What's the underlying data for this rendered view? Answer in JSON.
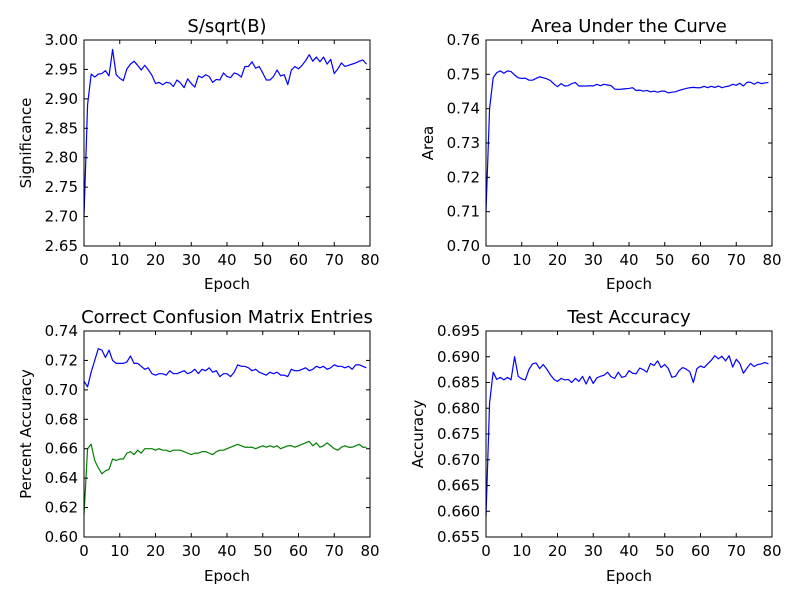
{
  "chart_data": [
    {
      "type": "line",
      "title": "S/sqrt(B)",
      "xlabel": "Epoch",
      "ylabel": "Significance",
      "xlim": [
        0,
        80
      ],
      "ylim": [
        2.65,
        3.0
      ],
      "xticks": [
        "0",
        "10",
        "20",
        "30",
        "40",
        "50",
        "60",
        "70",
        "80"
      ],
      "yticks": [
        "2.65",
        "2.70",
        "2.75",
        "2.80",
        "2.85",
        "2.90",
        "2.95",
        "3.00"
      ],
      "grid": false,
      "x": [
        0,
        1,
        2,
        3,
        4,
        5,
        6,
        7,
        8,
        9,
        10,
        11,
        12,
        13,
        14,
        15,
        16,
        17,
        18,
        19,
        20,
        21,
        22,
        23,
        24,
        25,
        26,
        27,
        28,
        29,
        30,
        31,
        32,
        33,
        34,
        35,
        36,
        37,
        38,
        39,
        40,
        41,
        42,
        43,
        44,
        45,
        46,
        47,
        48,
        49,
        50,
        51,
        52,
        53,
        54,
        55,
        56,
        57,
        58,
        59,
        60,
        61,
        62,
        63,
        64,
        65,
        66,
        67,
        68,
        69,
        70,
        71,
        72,
        73,
        74,
        75,
        76,
        77,
        78,
        79
      ],
      "series": [
        {
          "color": "#0000ff",
          "values": [
            2.7,
            2.89,
            2.942,
            2.937,
            2.942,
            2.943,
            2.948,
            2.939,
            2.984,
            2.941,
            2.935,
            2.931,
            2.951,
            2.959,
            2.964,
            2.957,
            2.949,
            2.957,
            2.949,
            2.94,
            2.926,
            2.928,
            2.924,
            2.928,
            2.927,
            2.921,
            2.932,
            2.927,
            2.919,
            2.934,
            2.926,
            2.92,
            2.939,
            2.936,
            2.941,
            2.938,
            2.928,
            2.933,
            2.932,
            2.944,
            2.938,
            2.936,
            2.944,
            2.942,
            2.937,
            2.955,
            2.955,
            2.963,
            2.952,
            2.955,
            2.944,
            2.932,
            2.932,
            2.938,
            2.949,
            2.939,
            2.941,
            2.924,
            2.949,
            2.955,
            2.951,
            2.957,
            2.965,
            2.975,
            2.964,
            2.971,
            2.963,
            2.971,
            2.959,
            2.967,
            2.943,
            2.951,
            2.961,
            2.955,
            2.957,
            2.959,
            2.961,
            2.964,
            2.966,
            2.959
          ]
        }
      ]
    },
    {
      "type": "line",
      "title": "Area Under the Curve",
      "xlabel": "Epoch",
      "ylabel": "Area",
      "xlim": [
        0,
        80
      ],
      "ylim": [
        0.7,
        0.76
      ],
      "xticks": [
        "0",
        "10",
        "20",
        "30",
        "40",
        "50",
        "60",
        "70",
        "80"
      ],
      "yticks": [
        "0.70",
        "0.71",
        "0.72",
        "0.73",
        "0.74",
        "0.75",
        "0.76"
      ],
      "grid": false,
      "x": [
        0,
        1,
        2,
        3,
        4,
        5,
        6,
        7,
        8,
        9,
        10,
        11,
        12,
        13,
        14,
        15,
        16,
        17,
        18,
        19,
        20,
        21,
        22,
        23,
        24,
        25,
        26,
        27,
        28,
        29,
        30,
        31,
        32,
        33,
        34,
        35,
        36,
        37,
        38,
        39,
        40,
        41,
        42,
        43,
        44,
        45,
        46,
        47,
        48,
        49,
        50,
        51,
        52,
        53,
        54,
        55,
        56,
        57,
        58,
        59,
        60,
        61,
        62,
        63,
        64,
        65,
        66,
        67,
        68,
        69,
        70,
        71,
        72,
        73,
        74,
        75,
        76,
        77,
        78,
        79
      ],
      "series": [
        {
          "color": "#0000ff",
          "values": [
            0.71,
            0.74,
            0.749,
            0.7505,
            0.751,
            0.7503,
            0.751,
            0.7508,
            0.7498,
            0.749,
            0.7488,
            0.7489,
            0.7483,
            0.7483,
            0.7488,
            0.7493,
            0.749,
            0.7487,
            0.7482,
            0.7472,
            0.7464,
            0.7473,
            0.7466,
            0.7467,
            0.7473,
            0.7476,
            0.7466,
            0.7466,
            0.7466,
            0.7467,
            0.7466,
            0.7471,
            0.7467,
            0.7471,
            0.7469,
            0.7467,
            0.7457,
            0.7456,
            0.7457,
            0.7458,
            0.7459,
            0.7461,
            0.7453,
            0.7454,
            0.7451,
            0.7453,
            0.7449,
            0.7451,
            0.7448,
            0.7451,
            0.7451,
            0.7446,
            0.7448,
            0.7449,
            0.7453,
            0.7456,
            0.7459,
            0.7461,
            0.7462,
            0.7461,
            0.7461,
            0.7465,
            0.7461,
            0.7465,
            0.7462,
            0.7466,
            0.7461,
            0.7464,
            0.7466,
            0.7471,
            0.7468,
            0.7474,
            0.7466,
            0.7477,
            0.7477,
            0.7471,
            0.7477,
            0.7473,
            0.7475,
            0.7476
          ]
        }
      ]
    },
    {
      "type": "line",
      "title": "Correct Confusion Matrix Entries",
      "xlabel": "Epoch",
      "ylabel": "Percent Accuracy",
      "xlim": [
        0,
        80
      ],
      "ylim": [
        0.6,
        0.74
      ],
      "xticks": [
        "0",
        "10",
        "20",
        "30",
        "40",
        "50",
        "60",
        "70",
        "80"
      ],
      "yticks": [
        "0.60",
        "0.62",
        "0.64",
        "0.66",
        "0.68",
        "0.70",
        "0.72",
        "0.74"
      ],
      "grid": false,
      "x": [
        0,
        1,
        2,
        3,
        4,
        5,
        6,
        7,
        8,
        9,
        10,
        11,
        12,
        13,
        14,
        15,
        16,
        17,
        18,
        19,
        20,
        21,
        22,
        23,
        24,
        25,
        26,
        27,
        28,
        29,
        30,
        31,
        32,
        33,
        34,
        35,
        36,
        37,
        38,
        39,
        40,
        41,
        42,
        43,
        44,
        45,
        46,
        47,
        48,
        49,
        50,
        51,
        52,
        53,
        54,
        55,
        56,
        57,
        58,
        59,
        60,
        61,
        62,
        63,
        64,
        65,
        66,
        67,
        68,
        69,
        70,
        71,
        72,
        73,
        74,
        75,
        76,
        77,
        78,
        79
      ],
      "series": [
        {
          "color": "#0000ff",
          "values": [
            0.706,
            0.702,
            0.712,
            0.72,
            0.728,
            0.727,
            0.722,
            0.727,
            0.72,
            0.718,
            0.718,
            0.718,
            0.719,
            0.723,
            0.718,
            0.718,
            0.716,
            0.714,
            0.715,
            0.711,
            0.71,
            0.711,
            0.711,
            0.71,
            0.713,
            0.711,
            0.711,
            0.712,
            0.713,
            0.711,
            0.712,
            0.714,
            0.711,
            0.714,
            0.713,
            0.715,
            0.712,
            0.713,
            0.709,
            0.711,
            0.711,
            0.709,
            0.712,
            0.717,
            0.716,
            0.716,
            0.715,
            0.713,
            0.714,
            0.712,
            0.711,
            0.71,
            0.712,
            0.711,
            0.712,
            0.71,
            0.71,
            0.709,
            0.714,
            0.713,
            0.713,
            0.714,
            0.715,
            0.713,
            0.714,
            0.716,
            0.715,
            0.716,
            0.714,
            0.715,
            0.717,
            0.716,
            0.716,
            0.715,
            0.716,
            0.714,
            0.717,
            0.717,
            0.716,
            0.715
          ]
        },
        {
          "color": "#008000",
          "values": [
            0.615,
            0.66,
            0.663,
            0.652,
            0.647,
            0.643,
            0.645,
            0.646,
            0.653,
            0.652,
            0.653,
            0.653,
            0.657,
            0.658,
            0.656,
            0.659,
            0.657,
            0.66,
            0.66,
            0.66,
            0.659,
            0.66,
            0.659,
            0.659,
            0.658,
            0.659,
            0.659,
            0.659,
            0.658,
            0.657,
            0.656,
            0.657,
            0.657,
            0.658,
            0.658,
            0.657,
            0.656,
            0.658,
            0.659,
            0.659,
            0.66,
            0.661,
            0.662,
            0.663,
            0.662,
            0.661,
            0.661,
            0.661,
            0.66,
            0.661,
            0.662,
            0.661,
            0.662,
            0.661,
            0.662,
            0.66,
            0.661,
            0.662,
            0.662,
            0.661,
            0.662,
            0.663,
            0.664,
            0.665,
            0.662,
            0.664,
            0.661,
            0.662,
            0.664,
            0.662,
            0.66,
            0.659,
            0.661,
            0.662,
            0.661,
            0.661,
            0.662,
            0.663,
            0.661,
            0.661
          ]
        }
      ]
    },
    {
      "type": "line",
      "title": "Test Accuracy",
      "xlabel": "Epoch",
      "ylabel": "Accuracy",
      "xlim": [
        0,
        80
      ],
      "ylim": [
        0.655,
        0.695
      ],
      "xticks": [
        "0",
        "10",
        "20",
        "30",
        "40",
        "50",
        "60",
        "70",
        "80"
      ],
      "yticks": [
        "0.655",
        "0.660",
        "0.665",
        "0.670",
        "0.675",
        "0.680",
        "0.685",
        "0.690",
        "0.695"
      ],
      "grid": false,
      "x": [
        0,
        1,
        2,
        3,
        4,
        5,
        6,
        7,
        8,
        9,
        10,
        11,
        12,
        13,
        14,
        15,
        16,
        17,
        18,
        19,
        20,
        21,
        22,
        23,
        24,
        25,
        26,
        27,
        28,
        29,
        30,
        31,
        32,
        33,
        34,
        35,
        36,
        37,
        38,
        39,
        40,
        41,
        42,
        43,
        44,
        45,
        46,
        47,
        48,
        49,
        50,
        51,
        52,
        53,
        54,
        55,
        56,
        57,
        58,
        59,
        60,
        61,
        62,
        63,
        64,
        65,
        66,
        67,
        68,
        69,
        70,
        71,
        72,
        73,
        74,
        75,
        76,
        77,
        78,
        79
      ],
      "series": [
        {
          "color": "#0000ff",
          "values": [
            0.659,
            0.681,
            0.687,
            0.6856,
            0.686,
            0.6855,
            0.686,
            0.6855,
            0.69,
            0.6862,
            0.6857,
            0.6855,
            0.6875,
            0.6886,
            0.6888,
            0.6877,
            0.6885,
            0.6876,
            0.6865,
            0.6856,
            0.6852,
            0.6858,
            0.6855,
            0.6856,
            0.685,
            0.6858,
            0.6852,
            0.6862,
            0.6847,
            0.6862,
            0.6848,
            0.6859,
            0.6862,
            0.6864,
            0.687,
            0.6861,
            0.6858,
            0.687,
            0.686,
            0.6862,
            0.6873,
            0.6868,
            0.6867,
            0.6878,
            0.6875,
            0.687,
            0.6887,
            0.6883,
            0.6892,
            0.6879,
            0.6885,
            0.6877,
            0.686,
            0.6862,
            0.6873,
            0.6879,
            0.6876,
            0.6871,
            0.685,
            0.6877,
            0.6882,
            0.6879,
            0.6886,
            0.6893,
            0.6902,
            0.6896,
            0.6901,
            0.6892,
            0.6902,
            0.688,
            0.6895,
            0.6887,
            0.6868,
            0.6878,
            0.6887,
            0.6881,
            0.6885,
            0.6886,
            0.6889,
            0.6886
          ]
        }
      ]
    }
  ]
}
